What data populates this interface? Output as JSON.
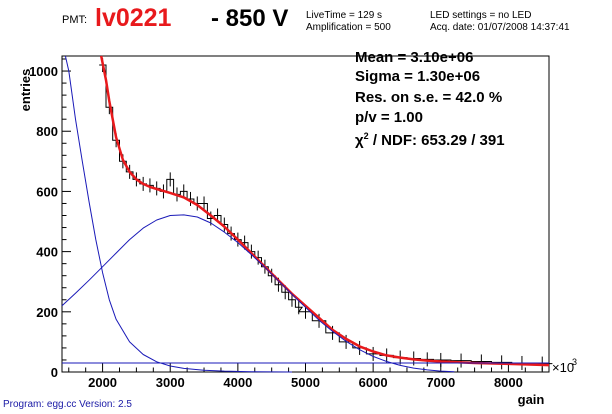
{
  "header": {
    "pmt_label": "PMT:",
    "pmt_id": "lv0221",
    "voltage": "- 850 V",
    "live_time": "LiveTime = 129 s",
    "amplification": "Amplification = 500",
    "led_settings": "LED settings = no LED",
    "acq_date": "Acq. date:  01/07/2008 14:37:41"
  },
  "stats": {
    "mean": "Mean = 3.10e+06",
    "sigma": "Sigma = 1.30e+06",
    "resolution": "Res. on s.e. =  42.0 %",
    "pv": "p/v  =  1.00",
    "chi2_label": "χ",
    "chi2_sup": "2",
    "chi2_rest": " / NDF:   653.29 / 391"
  },
  "footer": "Program: egg.cc Version: 2.5",
  "chart_data": {
    "type": "line",
    "title": "",
    "xlabel": "gain",
    "ylabel": "entries",
    "x_multiplier_label": "×10",
    "x_multiplier_exp": "3",
    "xlim": [
      1400,
      8600
    ],
    "ylim": [
      0,
      1050
    ],
    "x_ticks": [
      2000,
      3000,
      4000,
      5000,
      6000,
      7000,
      8000
    ],
    "y_ticks": [
      0,
      200,
      400,
      600,
      800,
      1000
    ],
    "colors": {
      "fit": "#e8191c",
      "components": "#1a1ab8",
      "histogram": "#000000"
    },
    "histogram": {
      "name": "",
      "x": [
        2000,
        2100,
        2200,
        2300,
        2400,
        2500,
        2600,
        2700,
        2800,
        2900,
        3000,
        3100,
        3200,
        3300,
        3400,
        3500,
        3600,
        3700,
        3800,
        3900,
        4000,
        4100,
        4200,
        4300,
        4400,
        4500,
        4600,
        4700,
        4800,
        4900,
        5000,
        5200,
        5400,
        5600,
        5800,
        6000,
        6200,
        6400,
        6600,
        6800,
        7000,
        7300,
        7600,
        7900,
        8200,
        8500
      ],
      "y": [
        1020,
        880,
        770,
        700,
        665,
        640,
        625,
        620,
        610,
        600,
        640,
        590,
        600,
        575,
        560,
        560,
        510,
        520,
        490,
        460,
        440,
        430,
        400,
        380,
        350,
        320,
        290,
        265,
        240,
        215,
        200,
        170,
        130,
        100,
        80,
        60,
        55,
        48,
        45,
        42,
        40,
        38,
        35,
        32,
        30,
        28
      ]
    },
    "series": [
      {
        "name": "",
        "role": "total fit",
        "x": [
          1980,
          2050,
          2100,
          2150,
          2200,
          2300,
          2400,
          2500,
          2600,
          2700,
          2800,
          3000,
          3200,
          3400,
          3600,
          3800,
          4000,
          4200,
          4400,
          4600,
          4800,
          5000,
          5200,
          5400,
          5600,
          5800,
          6000,
          6200,
          6400,
          6600,
          6800,
          7000,
          7500,
          8000,
          8600
        ],
        "y": [
          1050,
          970,
          900,
          840,
          780,
          705,
          665,
          640,
          625,
          615,
          608,
          595,
          580,
          555,
          520,
          483,
          440,
          395,
          350,
          305,
          260,
          220,
          180,
          140,
          110,
          85,
          68,
          55,
          48,
          42,
          38,
          35,
          30,
          27,
          23
        ]
      },
      {
        "name": "",
        "role": "exponential component",
        "x": [
          1450,
          1500,
          1600,
          1700,
          1800,
          1900,
          2000,
          2100,
          2200,
          2400,
          2600,
          2800,
          3000,
          3200,
          3500,
          3800,
          4200,
          4800
        ],
        "y": [
          1050,
          1000,
          840,
          700,
          565,
          440,
          330,
          240,
          175,
          100,
          58,
          34,
          20,
          12,
          6,
          3,
          1,
          0
        ]
      },
      {
        "name": "",
        "role": "gaussian component",
        "x": [
          1400,
          1600,
          1800,
          2000,
          2200,
          2400,
          2600,
          2800,
          3000,
          3200,
          3400,
          3600,
          3800,
          4000,
          4200,
          4400,
          4600,
          4800,
          5000,
          5200,
          5400,
          5600,
          5800,
          6000,
          6200,
          6400,
          6600,
          6800,
          7000,
          7200
        ],
        "y": [
          220,
          262,
          305,
          350,
          395,
          440,
          478,
          505,
          520,
          522,
          515,
          495,
          465,
          430,
          390,
          348,
          303,
          258,
          215,
          172,
          135,
          102,
          74,
          52,
          35,
          22,
          13,
          7,
          3,
          1
        ]
      },
      {
        "name": "",
        "role": "flat component",
        "x": [
          1400,
          8600
        ],
        "y": [
          30,
          30
        ]
      }
    ]
  }
}
